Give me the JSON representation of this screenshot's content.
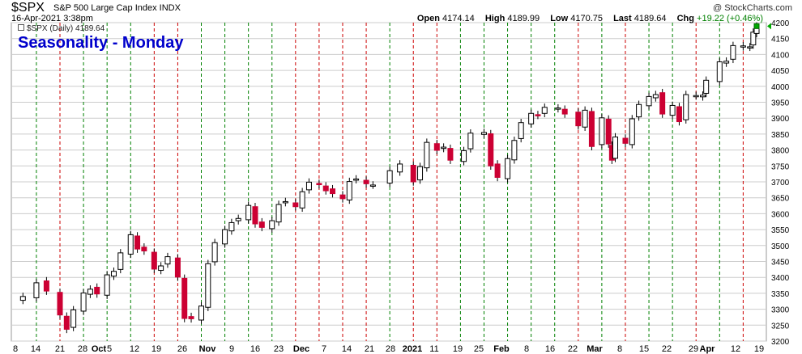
{
  "header": {
    "symbol": "$SPX",
    "symbol_name": "S&P 500 Large Cap Index INDX",
    "datetime": "16-Apr-2021 3:38pm",
    "watermark": "@ StockCharts.com",
    "open_label": "Open",
    "open": "4174.14",
    "high_label": "High",
    "high": "4189.99",
    "low_label": "Low",
    "low": "4170.75",
    "last_label": "Last",
    "last": "4189.64",
    "chg_label": "Chg",
    "chg": "+19.22 (+0.46%)"
  },
  "legend": {
    "text": "$SPX (Daily) 4189.64"
  },
  "overlay_title": "Seasonality - Monday",
  "colors": {
    "up": "#ffffff",
    "down": "#cc0033",
    "up_border": "#000000",
    "grid": "#cccccc",
    "green_line": "#008000",
    "red_line": "#cc0000",
    "last_marker": "#00aa00"
  },
  "chart_data": {
    "type": "candlestick",
    "title": "Seasonality - Monday",
    "ylim": [
      3200,
      4200
    ],
    "yticks": [
      3200,
      3250,
      3300,
      3350,
      3400,
      3450,
      3500,
      3550,
      3600,
      3650,
      3700,
      3750,
      3800,
      3850,
      3900,
      3950,
      4000,
      4050,
      4100,
      4150,
      4200
    ],
    "xticks": [
      "8",
      "14",
      "21",
      "28",
      "Oct",
      "5",
      "12",
      "19",
      "26",
      "Nov",
      "9",
      "16",
      "23",
      "Dec",
      "7",
      "14",
      "21",
      "28",
      "2021",
      "11",
      "19",
      "25",
      "Feb",
      "8",
      "16",
      "22",
      "Mar",
      "8",
      "15",
      "22",
      "29",
      "Apr",
      "12",
      "19"
    ],
    "date_start": "2020-09-08",
    "date_end": "2021-04-16",
    "monday_lines": [
      {
        "date": "2020-09-14",
        "color": "green"
      },
      {
        "date": "2020-09-21",
        "color": "red"
      },
      {
        "date": "2020-09-28",
        "color": "green"
      },
      {
        "date": "2020-10-05",
        "color": "green"
      },
      {
        "date": "2020-10-12",
        "color": "green"
      },
      {
        "date": "2020-10-19",
        "color": "red"
      },
      {
        "date": "2020-10-26",
        "color": "red"
      },
      {
        "date": "2020-11-02",
        "color": "green"
      },
      {
        "date": "2020-11-09",
        "color": "green"
      },
      {
        "date": "2020-11-16",
        "color": "green"
      },
      {
        "date": "2020-11-23",
        "color": "green"
      },
      {
        "date": "2020-11-30",
        "color": "red"
      },
      {
        "date": "2020-12-07",
        "color": "red"
      },
      {
        "date": "2020-12-14",
        "color": "red"
      },
      {
        "date": "2020-12-21",
        "color": "red"
      },
      {
        "date": "2020-12-28",
        "color": "green"
      },
      {
        "date": "2021-01-04",
        "color": "red"
      },
      {
        "date": "2021-01-11",
        "color": "red"
      },
      {
        "date": "2021-01-18",
        "color": "green"
      },
      {
        "date": "2021-01-25",
        "color": "green"
      },
      {
        "date": "2021-02-01",
        "color": "green"
      },
      {
        "date": "2021-02-08",
        "color": "green"
      },
      {
        "date": "2021-02-15",
        "color": "green"
      },
      {
        "date": "2021-02-22",
        "color": "red"
      },
      {
        "date": "2021-03-01",
        "color": "green"
      },
      {
        "date": "2021-03-08",
        "color": "red"
      },
      {
        "date": "2021-03-15",
        "color": "green"
      },
      {
        "date": "2021-03-22",
        "color": "green"
      },
      {
        "date": "2021-03-29",
        "color": "red"
      },
      {
        "date": "2021-04-05",
        "color": "green"
      },
      {
        "date": "2021-04-12",
        "color": "red"
      }
    ],
    "series": [
      {
        "name": "$SPX (Daily)",
        "close_points": [
          [
            "2020-09-08",
            3332
          ],
          [
            "2020-09-10",
            3340
          ],
          [
            "2020-09-14",
            3383
          ],
          [
            "2020-09-17",
            3357
          ],
          [
            "2020-09-21",
            3282
          ],
          [
            "2020-09-23",
            3237
          ],
          [
            "2020-09-25",
            3298
          ],
          [
            "2020-09-28",
            3351
          ],
          [
            "2020-09-30",
            3363
          ],
          [
            "2020-10-02",
            3348
          ],
          [
            "2020-10-05",
            3408
          ],
          [
            "2020-10-07",
            3419
          ],
          [
            "2020-10-09",
            3477
          ],
          [
            "2020-10-12",
            3534
          ],
          [
            "2020-10-14",
            3489
          ],
          [
            "2020-10-16",
            3483
          ],
          [
            "2020-10-19",
            3426
          ],
          [
            "2020-10-21",
            3436
          ],
          [
            "2020-10-23",
            3465
          ],
          [
            "2020-10-26",
            3401
          ],
          [
            "2020-10-28",
            3271
          ],
          [
            "2020-10-30",
            3270
          ],
          [
            "2020-11-02",
            3310
          ],
          [
            "2020-11-04",
            3443
          ],
          [
            "2020-11-06",
            3509
          ],
          [
            "2020-11-09",
            3550
          ],
          [
            "2020-11-11",
            3572
          ],
          [
            "2020-11-13",
            3585
          ],
          [
            "2020-11-16",
            3626
          ],
          [
            "2020-11-18",
            3568
          ],
          [
            "2020-11-20",
            3557
          ],
          [
            "2020-11-23",
            3578
          ],
          [
            "2020-11-25",
            3629
          ],
          [
            "2020-11-27",
            3638
          ],
          [
            "2020-11-30",
            3622
          ],
          [
            "2020-12-02",
            3669
          ],
          [
            "2020-12-04",
            3699
          ],
          [
            "2020-12-07",
            3691
          ],
          [
            "2020-12-09",
            3672
          ],
          [
            "2020-12-11",
            3663
          ],
          [
            "2020-12-14",
            3647
          ],
          [
            "2020-12-16",
            3701
          ],
          [
            "2020-12-18",
            3709
          ],
          [
            "2020-12-21",
            3694
          ],
          [
            "2020-12-23",
            3690
          ],
          [
            "2020-12-28",
            3735
          ],
          [
            "2020-12-31",
            3756
          ],
          [
            "2021-01-04",
            3700
          ],
          [
            "2021-01-06",
            3748
          ],
          [
            "2021-01-08",
            3824
          ],
          [
            "2021-01-11",
            3799
          ],
          [
            "2021-01-13",
            3809
          ],
          [
            "2021-01-15",
            3768
          ],
          [
            "2021-01-19",
            3798
          ],
          [
            "2021-01-21",
            3853
          ],
          [
            "2021-01-25",
            3855
          ],
          [
            "2021-01-27",
            3750
          ],
          [
            "2021-01-29",
            3714
          ],
          [
            "2021-02-01",
            3773
          ],
          [
            "2021-02-03",
            3830
          ],
          [
            "2021-02-05",
            3886
          ],
          [
            "2021-02-08",
            3915
          ],
          [
            "2021-02-10",
            3909
          ],
          [
            "2021-02-12",
            3934
          ],
          [
            "2021-02-16",
            3932
          ],
          [
            "2021-02-18",
            3913
          ],
          [
            "2021-02-22",
            3876
          ],
          [
            "2021-02-24",
            3925
          ],
          [
            "2021-02-26",
            3811
          ],
          [
            "2021-03-01",
            3901
          ],
          [
            "2021-03-03",
            3819
          ],
          [
            "2021-03-04",
            3768
          ],
          [
            "2021-03-05",
            3841
          ],
          [
            "2021-03-08",
            3821
          ],
          [
            "2021-03-10",
            3898
          ],
          [
            "2021-03-12",
            3943
          ],
          [
            "2021-03-15",
            3968
          ],
          [
            "2021-03-17",
            3974
          ],
          [
            "2021-03-19",
            3913
          ],
          [
            "2021-03-22",
            3940
          ],
          [
            "2021-03-24",
            3889
          ],
          [
            "2021-03-26",
            3974
          ],
          [
            "2021-03-29",
            3971
          ],
          [
            "2021-03-31",
            3972
          ],
          [
            "2021-04-01",
            4019
          ],
          [
            "2021-04-05",
            4077
          ],
          [
            "2021-04-07",
            4079
          ],
          [
            "2021-04-09",
            4128
          ],
          [
            "2021-04-12",
            4127
          ],
          [
            "2021-04-14",
            4124
          ],
          [
            "2021-04-15",
            4170
          ],
          [
            "2021-04-16",
            4189
          ]
        ]
      }
    ]
  }
}
